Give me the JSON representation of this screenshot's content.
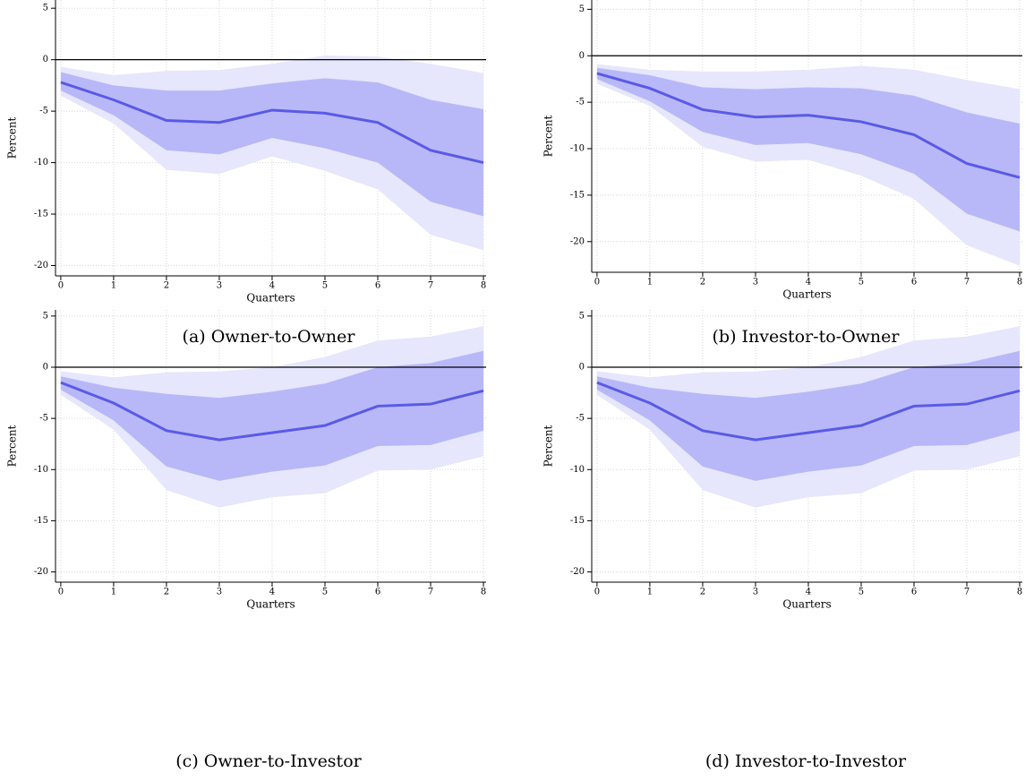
{
  "chart_data": [
    {
      "type": "line",
      "caption": "(a) Owner-to-Owner",
      "xlabel": "Quarters",
      "ylabel": "Percent",
      "x": [
        0,
        1,
        2,
        3,
        4,
        5,
        6,
        7,
        8
      ],
      "values": [
        -2.2,
        -3.9,
        -5.9,
        -6.1,
        -4.9,
        -5.2,
        -6.1,
        -8.8,
        -10.0
      ],
      "color": "#5a5ae6",
      "bands": [
        {
          "lower": [
            -3.5,
            -6.2,
            -10.7,
            -11.1,
            -9.4,
            -10.8,
            -12.6,
            -17.0,
            -18.5
          ],
          "upper": [
            -0.7,
            -1.5,
            -1.1,
            -1.0,
            -0.4,
            0.4,
            0.3,
            -0.4,
            -1.3
          ],
          "color": "#e6e6fc"
        },
        {
          "lower": [
            -3.0,
            -5.4,
            -8.8,
            -9.2,
            -7.6,
            -8.6,
            -10.0,
            -13.8,
            -15.2
          ],
          "upper": [
            -1.2,
            -2.5,
            -3.0,
            -3.0,
            -2.3,
            -1.8,
            -2.2,
            -3.9,
            -4.8
          ],
          "color": "#b8b8f8"
        }
      ],
      "reference_line": 0,
      "grid": true,
      "xlim": [
        -0.1,
        8.05
      ],
      "xticks": [
        0,
        1,
        2,
        3,
        4,
        5,
        6,
        7,
        8
      ],
      "ylim": [
        -21,
        5.8
      ],
      "yticks": [
        5,
        0,
        -5,
        -10,
        -15,
        -20
      ]
    },
    {
      "type": "line",
      "caption": "(b) Investor-to-Owner",
      "xlabel": "Quarters",
      "ylabel": "Percent",
      "x": [
        0,
        1,
        2,
        3,
        4,
        5,
        6,
        7,
        8
      ],
      "values": [
        -1.9,
        -3.5,
        -5.8,
        -6.6,
        -6.4,
        -7.1,
        -8.5,
        -11.6,
        -13.1
      ],
      "color": "#5a5ae6",
      "bands": [
        {
          "lower": [
            -3.0,
            -5.4,
            -9.8,
            -11.4,
            -11.2,
            -12.9,
            -15.4,
            -20.4,
            -22.6
          ],
          "upper": [
            -0.9,
            -1.5,
            -1.7,
            -1.7,
            -1.5,
            -1.1,
            -1.5,
            -2.6,
            -3.6
          ],
          "color": "#e6e6fc"
        },
        {
          "lower": [
            -2.5,
            -4.9,
            -8.2,
            -9.6,
            -9.4,
            -10.6,
            -12.7,
            -17.0,
            -18.9
          ],
          "upper": [
            -1.3,
            -2.1,
            -3.4,
            -3.6,
            -3.4,
            -3.5,
            -4.3,
            -6.1,
            -7.3
          ],
          "color": "#b8b8f8"
        }
      ],
      "reference_line": 0,
      "grid": true,
      "xlim": [
        -0.1,
        8.05
      ],
      "xticks": [
        0,
        1,
        2,
        3,
        4,
        5,
        6,
        7,
        8
      ],
      "ylim": [
        -23.3,
        6
      ],
      "yticks": [
        5,
        0,
        -5,
        -10,
        -15,
        -20
      ]
    },
    {
      "type": "line",
      "caption": "(c) Owner-to-Investor",
      "xlabel": "Quarters",
      "ylabel": "Percent",
      "x": [
        0,
        1,
        2,
        3,
        4,
        5,
        6,
        7,
        8
      ],
      "values": [
        -1.5,
        -3.5,
        -6.2,
        -7.1,
        -6.4,
        -5.7,
        -3.8,
        -3.6,
        -2.3
      ],
      "color": "#5a5ae6",
      "bands": [
        {
          "lower": [
            -2.7,
            -6.1,
            -12.0,
            -13.7,
            -12.7,
            -12.3,
            -10.1,
            -10.0,
            -8.7
          ],
          "upper": [
            -0.4,
            -1.0,
            -0.5,
            -0.4,
            0.0,
            1.0,
            2.6,
            3.0,
            4.0
          ],
          "color": "#e6e6fc"
        },
        {
          "lower": [
            -2.2,
            -5.2,
            -9.7,
            -11.1,
            -10.2,
            -9.6,
            -7.7,
            -7.6,
            -6.2
          ],
          "upper": [
            -0.9,
            -2.0,
            -2.6,
            -3.0,
            -2.4,
            -1.6,
            0.0,
            0.4,
            1.6
          ],
          "color": "#b8b8f8"
        }
      ],
      "reference_line": 0,
      "grid": true,
      "xlim": [
        -0.1,
        8.05
      ],
      "xticks": [
        0,
        1,
        2,
        3,
        4,
        5,
        6,
        7,
        8
      ],
      "ylim": [
        -21,
        5.6
      ],
      "yticks": [
        5,
        0,
        -5,
        -10,
        -15,
        -20
      ]
    },
    {
      "type": "line",
      "caption": "(d) Investor-to-Investor",
      "xlabel": "Quarters",
      "ylabel": "Percent",
      "x": [
        0,
        1,
        2,
        3,
        4,
        5,
        6,
        7,
        8
      ],
      "values": [
        -1.5,
        -3.5,
        -6.2,
        -7.1,
        -6.4,
        -5.7,
        -3.8,
        -3.6,
        -2.3
      ],
      "color": "#5a5ae6",
      "bands": [
        {
          "lower": [
            -2.7,
            -6.1,
            -12.0,
            -13.7,
            -12.7,
            -12.3,
            -10.1,
            -10.0,
            -8.7
          ],
          "upper": [
            -0.4,
            -1.0,
            -0.5,
            -0.4,
            0.0,
            1.0,
            2.6,
            3.0,
            4.0
          ],
          "color": "#e6e6fc"
        },
        {
          "lower": [
            -2.2,
            -5.2,
            -9.7,
            -11.1,
            -10.2,
            -9.6,
            -7.7,
            -7.6,
            -6.2
          ],
          "upper": [
            -0.9,
            -2.0,
            -2.6,
            -3.0,
            -2.4,
            -1.6,
            0.0,
            0.4,
            1.6
          ],
          "color": "#b8b8f8"
        }
      ],
      "reference_line": 0,
      "grid": true,
      "xlim": [
        -0.1,
        8.05
      ],
      "xticks": [
        0,
        1,
        2,
        3,
        4,
        5,
        6,
        7,
        8
      ],
      "ylim": [
        -21,
        5.6
      ],
      "yticks": [
        5,
        0,
        -5,
        -10,
        -15,
        -20
      ]
    }
  ]
}
